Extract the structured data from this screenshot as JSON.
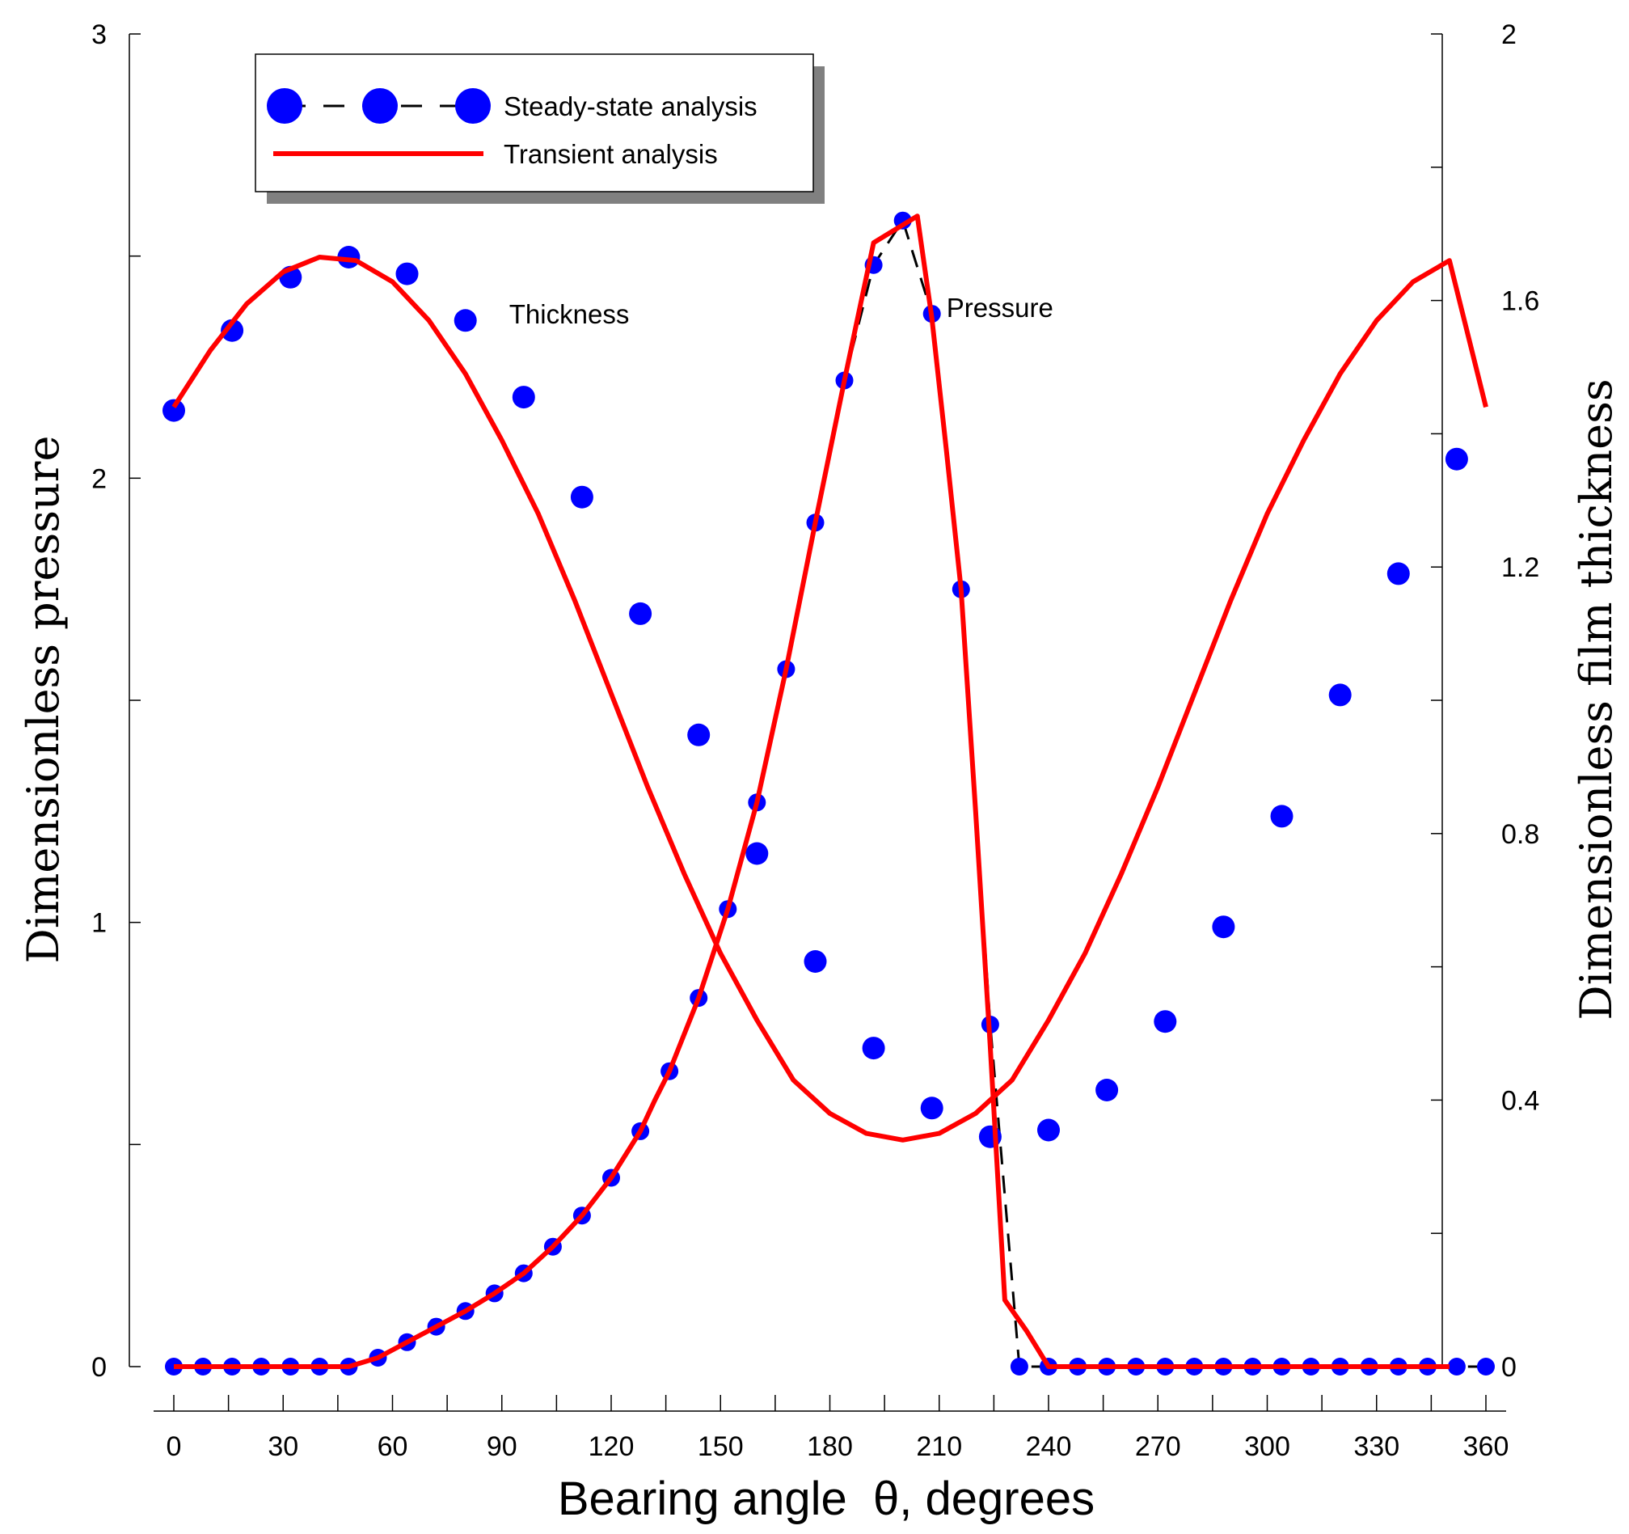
{
  "chart_data": {
    "type": "line",
    "title": "",
    "xlabel": "Bearing angle  θ, degrees",
    "ylabel_left": "Dimensionless pressure",
    "ylabel_right": "Dimensionless film thickness",
    "xlim": [
      0,
      360
    ],
    "ylim_left": [
      0,
      3
    ],
    "ylim_right": [
      0,
      2
    ],
    "x_ticks": [
      "0",
      "30",
      "60",
      "90",
      "120",
      "150",
      "180",
      "210",
      "240",
      "270",
      "300",
      "330",
      "360"
    ],
    "y_left_ticks": [
      "0",
      "1",
      "2",
      "3"
    ],
    "y_right_ticks": [
      "0",
      "0.4",
      "0.8",
      "1.2",
      "1.6",
      "2"
    ],
    "grid": false,
    "legend": {
      "position": "top-left",
      "entries": [
        "Steady-state analysis",
        "Transient analysis"
      ]
    },
    "annotations": [
      {
        "text": "Thickness",
        "x": 92,
        "y_right": 1.58
      },
      {
        "text": "Pressure",
        "x": 212,
        "y_right": 1.59
      }
    ],
    "colors": {
      "steady_marker": "#0000ff",
      "steady_line": "#000000",
      "transient_line": "#ff0000"
    },
    "series": [
      {
        "name": "Steady-state analysis",
        "quantity": "pressure",
        "axis": "left",
        "style": "markers-dashed",
        "x": [
          0,
          8,
          16,
          24,
          32,
          40,
          48,
          56,
          64,
          72,
          80,
          88,
          96,
          104,
          112,
          120,
          128,
          136,
          144,
          152,
          160,
          168,
          176,
          184,
          192,
          200,
          208,
          216,
          224,
          232,
          240,
          248,
          256,
          264,
          272,
          280,
          288,
          296,
          304,
          312,
          320,
          328,
          336,
          344,
          352,
          360
        ],
        "values": [
          0,
          0,
          0,
          0,
          0,
          0,
          0,
          0.02,
          0.055,
          0.09,
          0.125,
          0.165,
          0.21,
          0.27,
          0.34,
          0.425,
          0.53,
          0.665,
          0.83,
          1.03,
          1.27,
          1.57,
          1.9,
          2.22,
          2.48,
          2.58,
          2.37,
          1.75,
          0.77,
          0,
          0,
          0,
          0,
          0,
          0,
          0,
          0,
          0,
          0,
          0,
          0,
          0,
          0,
          0,
          0,
          0
        ]
      },
      {
        "name": "Steady-state analysis",
        "quantity": "thickness",
        "axis": "right",
        "style": "markers",
        "x": [
          0,
          16,
          32,
          48,
          64,
          80,
          96,
          112,
          128,
          144,
          160,
          176,
          192,
          208,
          224,
          240,
          256,
          272,
          288,
          304,
          320,
          336,
          352
        ],
        "values": [
          1.435,
          1.555,
          1.635,
          1.665,
          1.64,
          1.57,
          1.455,
          1.305,
          1.13,
          0.948,
          0.77,
          0.608,
          0.478,
          0.388,
          0.345,
          0.355,
          0.415,
          0.518,
          0.66,
          0.826,
          1.008,
          1.19,
          1.362
        ]
      },
      {
        "name": "Transient analysis",
        "quantity": "pressure",
        "axis": "left",
        "style": "line",
        "x": [
          0,
          45,
          48,
          56,
          64,
          72,
          80,
          88,
          96,
          104,
          112,
          120,
          128,
          132,
          136,
          144,
          152,
          160,
          168,
          176,
          184,
          192,
          196,
          200,
          204,
          208,
          212,
          216,
          220,
          224,
          228,
          234,
          240,
          250,
          300,
          350
        ],
        "values": [
          0,
          0,
          0,
          0.02,
          0.055,
          0.09,
          0.125,
          0.165,
          0.21,
          0.27,
          0.34,
          0.425,
          0.53,
          0.6,
          0.665,
          0.83,
          1.03,
          1.27,
          1.57,
          1.9,
          2.22,
          2.53,
          2.55,
          2.57,
          2.59,
          2.36,
          2.06,
          1.75,
          1.25,
          0.72,
          0.15,
          0.08,
          0,
          0,
          0,
          0
        ]
      },
      {
        "name": "Transient analysis",
        "quantity": "thickness",
        "axis": "right",
        "style": "line",
        "x": [
          0,
          10,
          20,
          30,
          40,
          50,
          60,
          70,
          80,
          90,
          100,
          110,
          120,
          130,
          140,
          150,
          160,
          170,
          180,
          190,
          200,
          210,
          220,
          230,
          240,
          250,
          260,
          270,
          280,
          290,
          300,
          310,
          320,
          330,
          340,
          350,
          360
        ],
        "values": [
          1.44,
          1.525,
          1.595,
          1.643,
          1.665,
          1.66,
          1.628,
          1.57,
          1.49,
          1.39,
          1.28,
          1.15,
          1.01,
          0.87,
          0.74,
          0.62,
          0.52,
          0.43,
          0.38,
          0.35,
          0.34,
          0.35,
          0.38,
          0.43,
          0.52,
          0.62,
          0.74,
          0.87,
          1.01,
          1.15,
          1.28,
          1.39,
          1.49,
          1.57,
          1.628,
          1.66,
          1.44
        ]
      }
    ]
  }
}
